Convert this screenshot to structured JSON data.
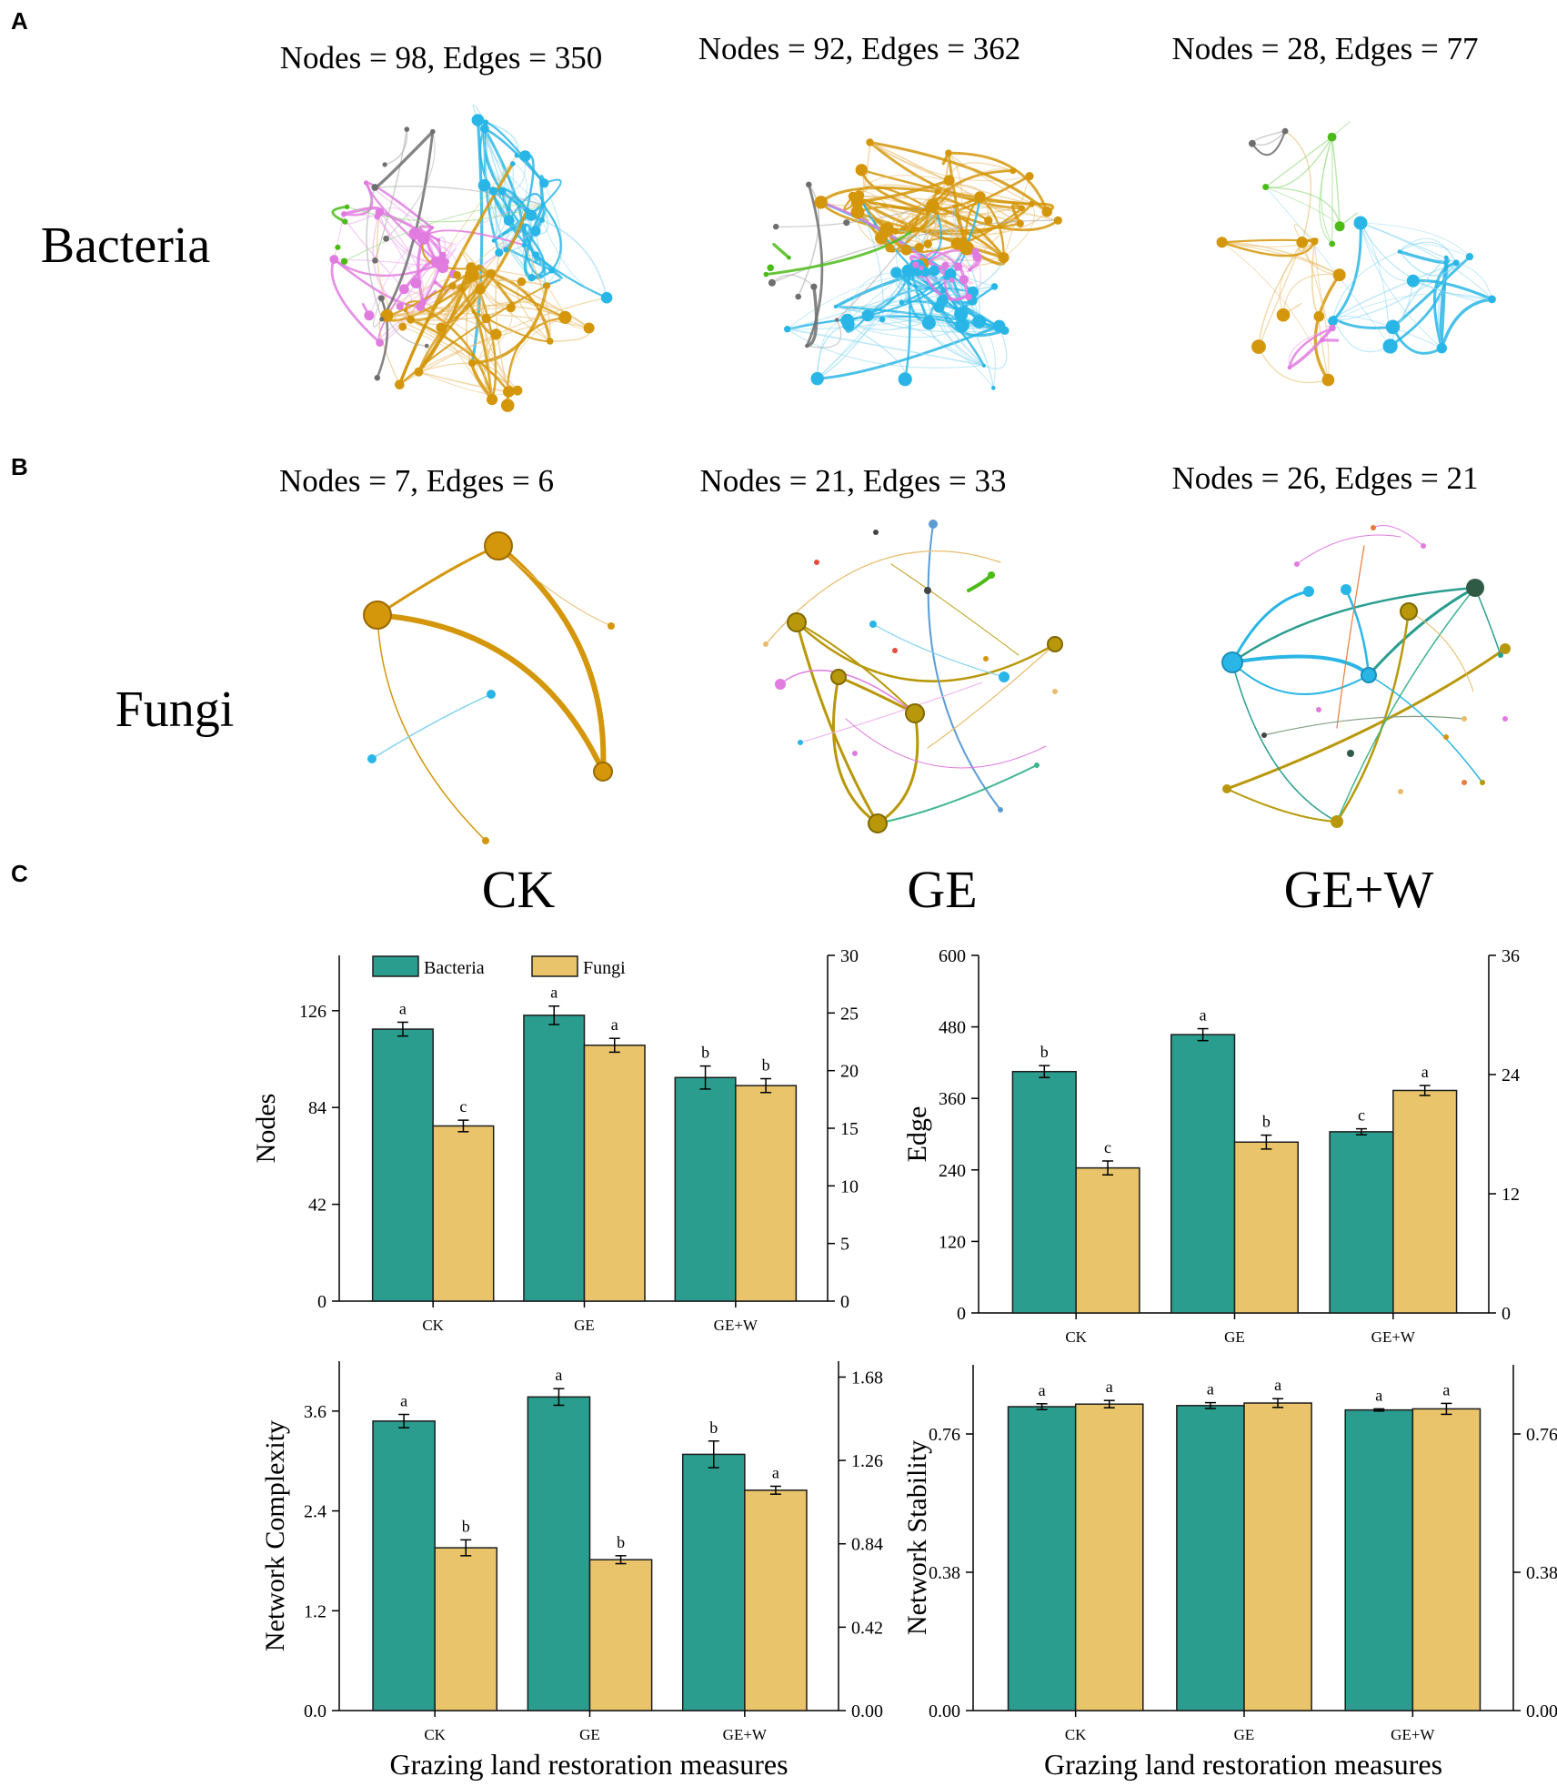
{
  "panels": {
    "a": "A",
    "b": "B",
    "c": "C"
  },
  "rows": {
    "bacteria": "Bacteria",
    "fungi": "Fungi"
  },
  "treatments": [
    "CK",
    "GE",
    "GE+W"
  ],
  "network_titles": {
    "bacteria": [
      "Nodes = 98, Edges = 350",
      "Nodes = 92, Edges = 362",
      "Nodes = 28, Edges = 77"
    ],
    "fungi": [
      "Nodes = 7, Edges = 6",
      "Nodes = 21, Edges = 33",
      "Nodes = 26, Edges = 21"
    ]
  },
  "colors": {
    "bacteria": "#2a9d8f",
    "fungi": "#e9c46a",
    "net_gold": "#d4960a",
    "net_blue": "#29b6e6",
    "net_pink": "#e07be0",
    "net_grey": "#6e6e6e",
    "net_green": "#4cbb17",
    "net_olive": "#b8980a",
    "net_dark": "#2f5a45"
  },
  "chart_data": [
    {
      "type": "bar",
      "title": "",
      "xlabel": "",
      "ylabel": "Nodes",
      "categories": [
        "CK",
        "GE",
        "GE+W"
      ],
      "legend": [
        "Bacteria",
        "Fungi"
      ],
      "legend_position": "top-left",
      "series": [
        {
          "name": "Bacteria",
          "axis": "left",
          "values": [
            118,
            124,
            97
          ],
          "errors": [
            3,
            4,
            5
          ],
          "letters": [
            "a",
            "a",
            "b"
          ]
        },
        {
          "name": "Fungi",
          "axis": "right",
          "values": [
            15.2,
            22.2,
            18.7
          ],
          "errors": [
            0.5,
            0.6,
            0.6
          ],
          "letters": [
            "c",
            "a",
            "b"
          ]
        }
      ],
      "ylim_left": [
        0,
        150
      ],
      "yticks_left": [
        0,
        42,
        84,
        126
      ],
      "ylim_right": [
        0,
        30
      ],
      "yticks_right": [
        0,
        5,
        10,
        15,
        20,
        25,
        30
      ]
    },
    {
      "type": "bar",
      "title": "",
      "xlabel": "",
      "ylabel": "Edge",
      "categories": [
        "CK",
        "GE",
        "GE+W"
      ],
      "series": [
        {
          "name": "Bacteria",
          "axis": "left",
          "values": [
            405,
            467,
            304
          ],
          "errors": [
            10,
            10,
            5
          ],
          "letters": [
            "b",
            "a",
            "c"
          ]
        },
        {
          "name": "Fungi",
          "axis": "right",
          "values": [
            14.6,
            17.2,
            22.4
          ],
          "errors": [
            0.7,
            0.7,
            0.5
          ],
          "letters": [
            "c",
            "b",
            "a"
          ]
        }
      ],
      "ylim_left": [
        0,
        600
      ],
      "yticks_left": [
        0,
        120,
        240,
        360,
        480,
        600
      ],
      "ylim_right": [
        0,
        36
      ],
      "yticks_right": [
        0,
        12,
        24,
        36
      ]
    },
    {
      "type": "bar",
      "title": "",
      "xlabel": "Grazing land restoration measures",
      "ylabel": "Network Complexity",
      "categories": [
        "CK",
        "GE",
        "GE+W"
      ],
      "series": [
        {
          "name": "Bacteria",
          "axis": "left",
          "values": [
            3.48,
            3.77,
            3.08
          ],
          "errors": [
            0.08,
            0.1,
            0.16
          ],
          "letters": [
            "a",
            "a",
            "b"
          ]
        },
        {
          "name": "Fungi",
          "axis": "right",
          "values": [
            0.82,
            0.76,
            1.11
          ],
          "errors": [
            0.04,
            0.02,
            0.02
          ],
          "letters": [
            "b",
            "b",
            "a"
          ]
        }
      ],
      "ylim_left": [
        0,
        4.2
      ],
      "yticks_left": [
        0.0,
        1.2,
        2.4,
        3.6
      ],
      "ylim_right": [
        0,
        1.76
      ],
      "yticks_right": [
        0.0,
        0.42,
        0.84,
        1.26,
        1.68
      ]
    },
    {
      "type": "bar",
      "title": "",
      "xlabel": "Grazing land restoration measures",
      "ylabel": "Network Stability",
      "categories": [
        "CK",
        "GE",
        "GE+W"
      ],
      "series": [
        {
          "name": "Bacteria",
          "axis": "left",
          "values": [
            0.835,
            0.838,
            0.826
          ],
          "errors": [
            0.008,
            0.008,
            0.003
          ],
          "letters": [
            "a",
            "a",
            "a"
          ]
        },
        {
          "name": "Fungi",
          "axis": "right",
          "values": [
            0.842,
            0.845,
            0.829
          ],
          "errors": [
            0.01,
            0.012,
            0.015
          ],
          "letters": [
            "a",
            "a",
            "a"
          ]
        }
      ],
      "ylim_left": [
        0,
        0.95
      ],
      "yticks_left": [
        0.0,
        0.38,
        0.76
      ],
      "ylim_right": [
        0,
        0.95
      ],
      "yticks_right": [
        0.0,
        0.38,
        0.76
      ]
    }
  ]
}
